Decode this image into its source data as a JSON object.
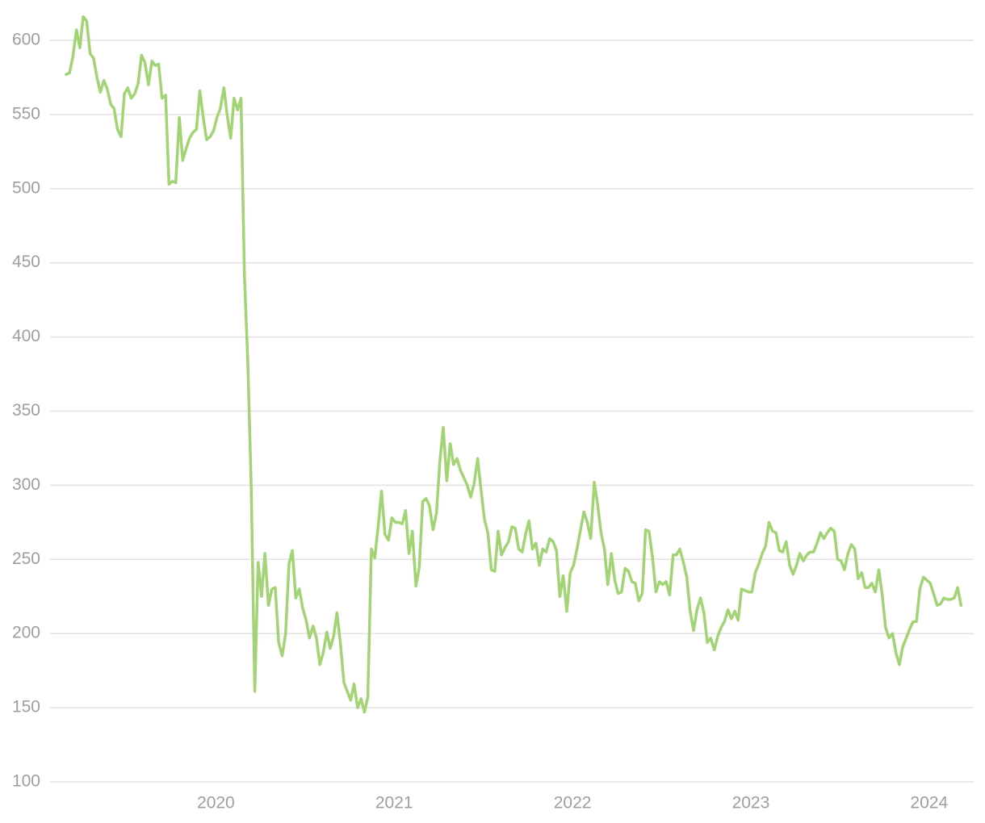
{
  "chart_data": {
    "type": "line",
    "x": [
      2019.16,
      2019.179,
      2019.198,
      2019.218,
      2019.237,
      2019.256,
      2019.275,
      2019.295,
      2019.314,
      2019.333,
      2019.352,
      2019.372,
      2019.391,
      2019.41,
      2019.429,
      2019.448,
      2019.468,
      2019.487,
      2019.506,
      2019.525,
      2019.545,
      2019.564,
      2019.583,
      2019.602,
      2019.622,
      2019.641,
      2019.66,
      2019.679,
      2019.698,
      2019.718,
      2019.737,
      2019.756,
      2019.775,
      2019.795,
      2019.814,
      2019.833,
      2019.852,
      2019.872,
      2019.891,
      2019.91,
      2019.929,
      2019.948,
      2019.968,
      2019.987,
      2020.006,
      2020.025,
      2020.045,
      2020.064,
      2020.083,
      2020.102,
      2020.122,
      2020.141,
      2020.16,
      2020.179,
      2020.198,
      2020.218,
      2020.237,
      2020.256,
      2020.275,
      2020.295,
      2020.314,
      2020.333,
      2020.352,
      2020.372,
      2020.391,
      2020.41,
      2020.429,
      2020.448,
      2020.468,
      2020.487,
      2020.506,
      2020.525,
      2020.545,
      2020.564,
      2020.583,
      2020.602,
      2020.622,
      2020.641,
      2020.66,
      2020.679,
      2020.698,
      2020.718,
      2020.737,
      2020.756,
      2020.775,
      2020.795,
      2020.814,
      2020.833,
      2020.852,
      2020.872,
      2020.891,
      2020.91,
      2020.929,
      2020.948,
      2020.968,
      2020.987,
      2021.006,
      2021.025,
      2021.045,
      2021.064,
      2021.083,
      2021.102,
      2021.122,
      2021.141,
      2021.16,
      2021.179,
      2021.198,
      2021.218,
      2021.237,
      2021.256,
      2021.275,
      2021.295,
      2021.314,
      2021.333,
      2021.352,
      2021.372,
      2021.391,
      2021.41,
      2021.429,
      2021.448,
      2021.468,
      2021.487,
      2021.506,
      2021.525,
      2021.545,
      2021.564,
      2021.583,
      2021.602,
      2021.622,
      2021.641,
      2021.66,
      2021.679,
      2021.698,
      2021.718,
      2021.737,
      2021.756,
      2021.775,
      2021.795,
      2021.814,
      2021.833,
      2021.852,
      2021.872,
      2021.891,
      2021.91,
      2021.929,
      2021.948,
      2021.968,
      2021.987,
      2022.006,
      2022.025,
      2022.045,
      2022.064,
      2022.083,
      2022.102,
      2022.122,
      2022.141,
      2022.16,
      2022.179,
      2022.198,
      2022.218,
      2022.237,
      2022.256,
      2022.275,
      2022.295,
      2022.314,
      2022.333,
      2022.352,
      2022.372,
      2022.391,
      2022.41,
      2022.429,
      2022.448,
      2022.468,
      2022.487,
      2022.506,
      2022.525,
      2022.545,
      2022.564,
      2022.583,
      2022.602,
      2022.622,
      2022.641,
      2022.66,
      2022.679,
      2022.698,
      2022.718,
      2022.737,
      2022.756,
      2022.775,
      2022.795,
      2022.814,
      2022.833,
      2022.852,
      2022.872,
      2022.891,
      2022.91,
      2022.929,
      2022.948,
      2022.968,
      2022.987,
      2023.006,
      2023.025,
      2023.045,
      2023.064,
      2023.083,
      2023.102,
      2023.122,
      2023.141,
      2023.16,
      2023.179,
      2023.198,
      2023.218,
      2023.237,
      2023.256,
      2023.275,
      2023.295,
      2023.314,
      2023.333,
      2023.352,
      2023.372,
      2023.391,
      2023.41,
      2023.429,
      2023.448,
      2023.468,
      2023.487,
      2023.506,
      2023.525,
      2023.545,
      2023.564,
      2023.583,
      2023.602,
      2023.622,
      2023.641,
      2023.66,
      2023.679,
      2023.698,
      2023.718,
      2023.737,
      2023.756,
      2023.775,
      2023.795,
      2023.814,
      2023.833,
      2023.852,
      2023.872,
      2023.891,
      2023.91,
      2023.929,
      2023.948,
      2023.968,
      2023.987,
      2024.006,
      2024.025,
      2024.045,
      2024.064,
      2024.083,
      2024.102,
      2024.122,
      2024.141,
      2024.16,
      2024.179
    ],
    "series": [
      {
        "color": "#a2d374",
        "values": [
          577,
          578,
          589,
          607,
          595,
          616,
          613,
          591,
          588,
          575,
          565,
          573,
          567,
          557,
          554,
          540,
          535,
          564,
          568,
          561,
          564,
          571,
          590,
          585,
          570,
          586,
          583,
          584,
          561,
          563,
          503,
          505,
          504,
          548,
          519,
          527,
          534,
          538,
          540,
          566,
          548,
          533,
          535,
          539,
          548,
          554,
          568,
          549,
          534,
          561,
          553,
          561,
          442,
          383,
          300,
          161,
          248,
          225,
          254,
          219,
          230,
          231,
          194,
          185,
          200,
          247,
          256,
          224,
          230,
          217,
          209,
          197,
          205,
          197,
          179,
          187,
          201,
          190,
          198,
          214,
          194,
          167,
          161,
          155,
          166,
          150,
          156,
          147,
          157,
          257,
          251,
          272,
          296,
          267,
          263,
          278,
          275,
          275,
          274,
          283,
          254,
          269,
          232,
          245,
          289,
          291,
          286,
          270,
          281,
          316,
          339,
          303,
          328,
          314,
          318,
          310,
          305,
          300,
          292,
          301,
          318,
          297,
          277,
          268,
          243,
          242,
          269,
          253,
          258,
          262,
          272,
          271,
          257,
          255,
          267,
          276,
          257,
          261,
          246,
          257,
          255,
          264,
          262,
          256,
          225,
          239,
          215,
          241,
          246,
          257,
          270,
          282,
          275,
          264,
          302,
          287,
          268,
          257,
          233,
          254,
          236,
          227,
          228,
          244,
          242,
          235,
          234,
          222,
          227,
          270,
          269,
          252,
          228,
          235,
          233,
          235,
          226,
          253,
          253,
          257,
          248,
          238,
          215,
          202,
          216,
          224,
          214,
          194,
          197,
          189,
          198,
          204,
          208,
          216,
          210,
          215,
          209,
          230,
          229,
          228,
          228,
          241,
          247,
          254,
          259,
          275,
          269,
          268,
          256,
          255,
          262,
          246,
          240,
          246,
          254,
          249,
          253,
          255,
          255,
          261,
          268,
          264,
          268,
          271,
          269,
          250,
          249,
          243,
          254,
          260,
          257,
          237,
          241,
          231,
          231,
          234,
          228,
          243,
          226,
          204,
          197,
          200,
          187,
          179,
          191,
          197,
          203,
          208,
          208,
          230,
          238,
          236,
          234,
          227,
          219,
          220,
          224,
          223,
          223,
          224,
          231,
          219
        ]
      }
    ],
    "xlim": [
      2019.07,
      2024.25
    ],
    "xticks": [
      2020,
      2021,
      2022,
      2023,
      2024
    ],
    "ylim": [
      100,
      600
    ],
    "yticks": [
      100,
      150,
      200,
      250,
      300,
      350,
      400,
      450,
      500,
      550,
      600
    ],
    "grid": true
  }
}
